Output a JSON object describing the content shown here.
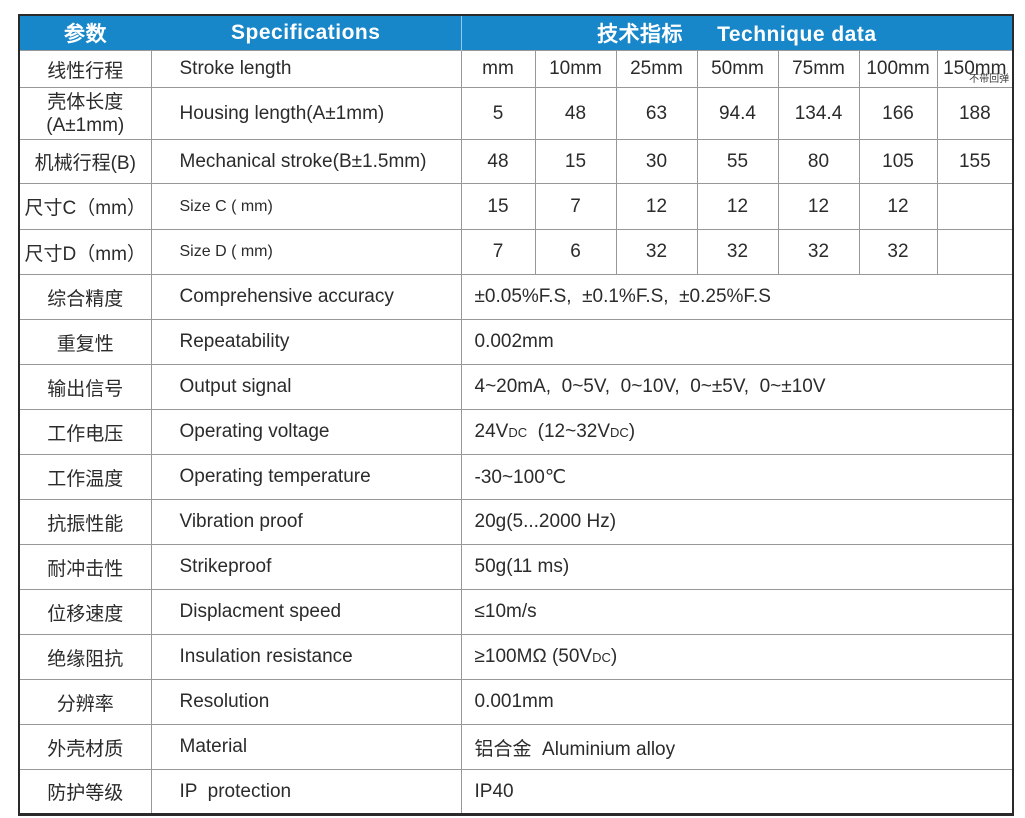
{
  "table": {
    "header": {
      "param": "参数",
      "spec": "Specifications",
      "tech_zh": "技术指标",
      "tech_en": "Technique data"
    },
    "grid_rows": [
      {
        "zh": "线性行程",
        "en": "Stroke length",
        "cells": [
          "mm",
          "10mm",
          "25mm",
          "50mm",
          "75mm",
          "100mm",
          "150mm"
        ],
        "last_note": "不带回弹"
      },
      {
        "zh": "壳体长度",
        "zh2": "(A±1mm)",
        "en": "Housing length(A±1mm)",
        "cells": [
          "5",
          "48",
          "63",
          "94.4",
          "134.4",
          "166",
          "188"
        ]
      },
      {
        "zh": "机械行程(B)",
        "en": "Mechanical stroke(B±1.5mm)",
        "cells": [
          "48",
          "15",
          "30",
          "55",
          "80",
          "105",
          "155"
        ]
      },
      {
        "zh": "尺寸C（mm）",
        "en": "Size C ( mm)",
        "en_small": true,
        "cells": [
          "15",
          "7",
          "12",
          "12",
          "12",
          "12",
          ""
        ]
      },
      {
        "zh": "尺寸D（mm）",
        "en": "Size D ( mm)",
        "en_small": true,
        "cells": [
          "7",
          "6",
          "32",
          "32",
          "32",
          "32",
          ""
        ]
      }
    ],
    "merged_rows": [
      {
        "zh": "综合精度",
        "en": "Comprehensive accuracy",
        "value": "±0.05%F.S,  ±0.1%F.S,  ±0.25%F.S"
      },
      {
        "zh": "重复性",
        "en": "Repeatability",
        "value": "0.002mm"
      },
      {
        "zh": "输出信号",
        "en": "Output signal",
        "value": "4~20mA,  0~5V,  0~10V,  0~±5V,  0~±10V"
      },
      {
        "zh": "工作电压",
        "en": "Operating voltage",
        "value_parts": [
          {
            "t": "24V"
          },
          {
            "t": "DC",
            "small": true
          },
          {
            "t": "  (12~32V"
          },
          {
            "t": "DC",
            "small": true
          },
          {
            "t": ")"
          }
        ]
      },
      {
        "zh": "工作温度",
        "en": "Operating temperature",
        "value": "-30~100℃"
      },
      {
        "zh": "抗振性能",
        "en": "Vibration proof",
        "value": "20g(5...2000 Hz)"
      },
      {
        "zh": "耐冲击性",
        "en": "Strikeproof",
        "value": "50g(11 ms)"
      },
      {
        "zh": "位移速度",
        "en": "Displacment speed",
        "value": "≤10m/s"
      },
      {
        "zh": "绝缘阻抗",
        "en": "Insulation resistance",
        "value_parts": [
          {
            "t": "≥100MΩ (50V"
          },
          {
            "t": "DC",
            "small": true
          },
          {
            "t": ")"
          }
        ]
      },
      {
        "zh": "分辨率",
        "en": "Resolution",
        "value": "0.001mm"
      },
      {
        "zh": "外壳材质",
        "en": "Material",
        "value": "铝合金  Aluminium alloy"
      },
      {
        "zh": "防护等级",
        "en": "IP  protection",
        "value": "IP40"
      }
    ],
    "colors": {
      "header_bg": "#1787c9",
      "header_text": "#ffffff",
      "outer_border": "#2a2a2a",
      "grid_line": "#989898",
      "body_text": "#2b2b2b"
    }
  }
}
